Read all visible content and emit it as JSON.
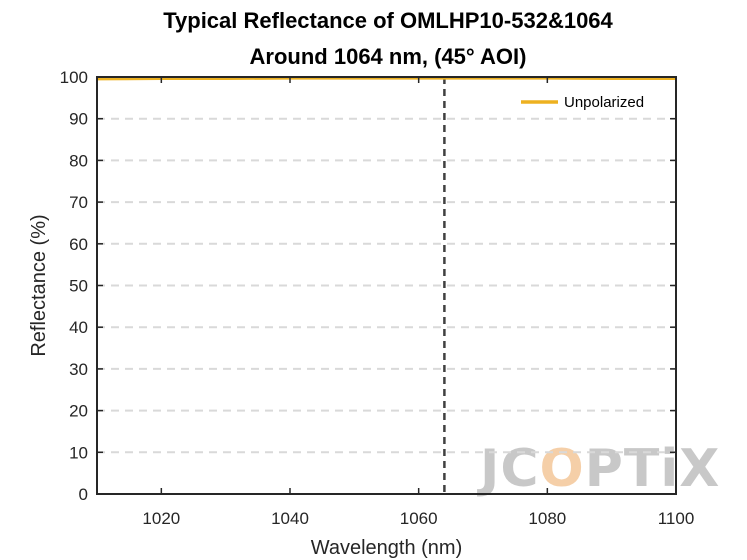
{
  "chart_data": {
    "type": "line",
    "title": [
      "Typical Reflectance of OMLHP10-532&1064",
      "Around 1064 nm, (45° AOI)"
    ],
    "xlabel": "Wavelength (nm)",
    "ylabel": "Reflectance (%)",
    "xlim": [
      1010,
      1100
    ],
    "ylim": [
      0,
      100
    ],
    "xticks": [
      1020,
      1040,
      1060,
      1080,
      1100
    ],
    "yticks": [
      0,
      10,
      20,
      30,
      40,
      50,
      60,
      70,
      80,
      90,
      100
    ],
    "grid": "horizontal-dashed",
    "legend_position": "top-right",
    "reference_line": {
      "x": 1064,
      "style": "dashed"
    },
    "series": [
      {
        "name": "Unpolarized",
        "color": "#EDB120",
        "x": [
          1010,
          1020,
          1030,
          1040,
          1050,
          1060,
          1064,
          1070,
          1080,
          1090,
          1100
        ],
        "y": [
          99.6,
          99.7,
          99.7,
          99.8,
          99.8,
          99.8,
          99.8,
          99.8,
          99.8,
          99.7,
          99.7
        ]
      }
    ]
  },
  "watermark": {
    "letters": [
      "J",
      "C",
      "O",
      "P",
      "T",
      "i",
      "X"
    ],
    "colors": {
      "base": "#c8c8c8",
      "accent": "#f5cfa8"
    }
  }
}
